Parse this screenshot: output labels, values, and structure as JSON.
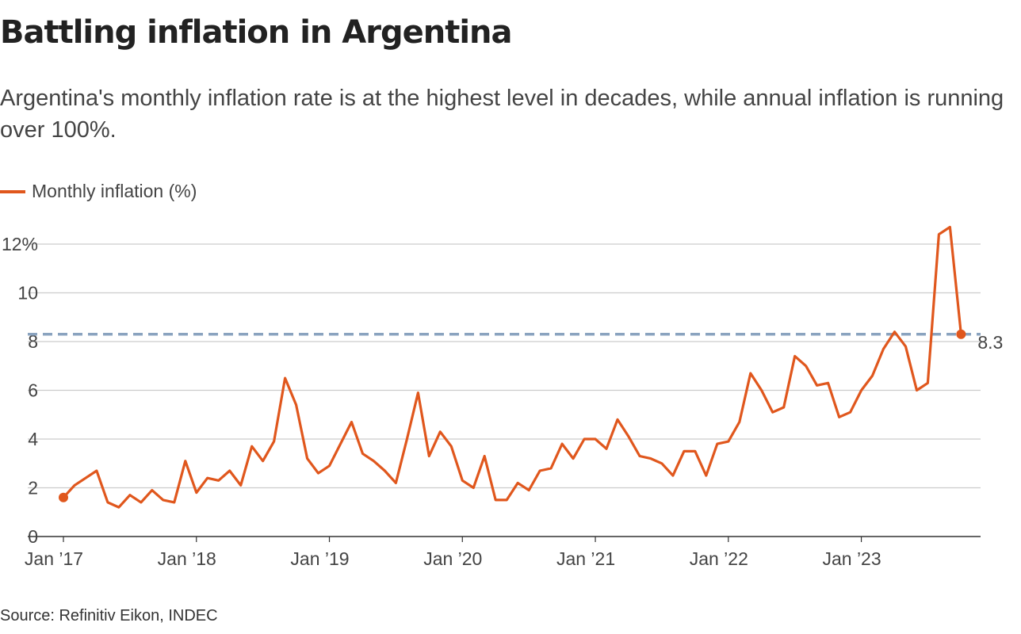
{
  "header": {
    "title": "Battling inflation in Argentina",
    "subtitle": "Argentina's monthly inflation rate is at the highest level in decades, while annual inflation is running over 100%."
  },
  "footer": {
    "source": "Source: Refinitiv Eikon, INDEC"
  },
  "colors": {
    "line": "#e0571d",
    "reference": "#8aa3bf",
    "grid": "#cccccc",
    "axis": "#333333"
  },
  "chart_data": {
    "type": "line",
    "title": "Battling inflation in Argentina",
    "xlabel": "",
    "ylabel": "",
    "ylim": [
      0,
      12.5
    ],
    "grid": true,
    "legend": "top-left",
    "y_ticks": [
      0,
      2,
      4,
      6,
      8,
      10,
      12
    ],
    "y_tick_labels": [
      "0",
      "2",
      "4",
      "6",
      "8",
      "10",
      "12%"
    ],
    "x_ticks": [
      "Jan ’17",
      "Jan ’18",
      "Jan ’19",
      "Jan ’20",
      "Jan ’21",
      "Jan ’22",
      "Jan ’23"
    ],
    "x_tick_index": [
      0,
      12,
      24,
      36,
      48,
      60,
      72
    ],
    "reference_line": {
      "value": 8.3,
      "label": "8.3"
    },
    "series": [
      {
        "name": "Monthly inflation (%)",
        "start": "Jan 2017",
        "values": [
          1.6,
          2.1,
          2.4,
          2.7,
          1.4,
          1.2,
          1.7,
          1.4,
          1.9,
          1.5,
          1.4,
          3.1,
          1.8,
          2.4,
          2.3,
          2.7,
          2.1,
          3.7,
          3.1,
          3.9,
          6.5,
          5.4,
          3.2,
          2.6,
          2.9,
          3.8,
          4.7,
          3.4,
          3.1,
          2.7,
          2.2,
          4.0,
          5.9,
          3.3,
          4.3,
          3.7,
          2.3,
          2.0,
          3.3,
          1.5,
          1.5,
          2.2,
          1.9,
          2.7,
          2.8,
          3.8,
          3.2,
          4.0,
          4.0,
          3.6,
          4.8,
          4.1,
          3.3,
          3.2,
          3.0,
          2.5,
          3.5,
          3.5,
          2.5,
          3.8,
          3.9,
          4.7,
          6.7,
          6.0,
          5.1,
          5.3,
          7.4,
          7.0,
          6.2,
          6.3,
          4.9,
          5.1,
          6.0,
          6.6,
          7.7,
          8.4,
          7.8,
          6.0,
          6.3,
          12.4,
          12.7,
          8.3
        ]
      }
    ]
  }
}
